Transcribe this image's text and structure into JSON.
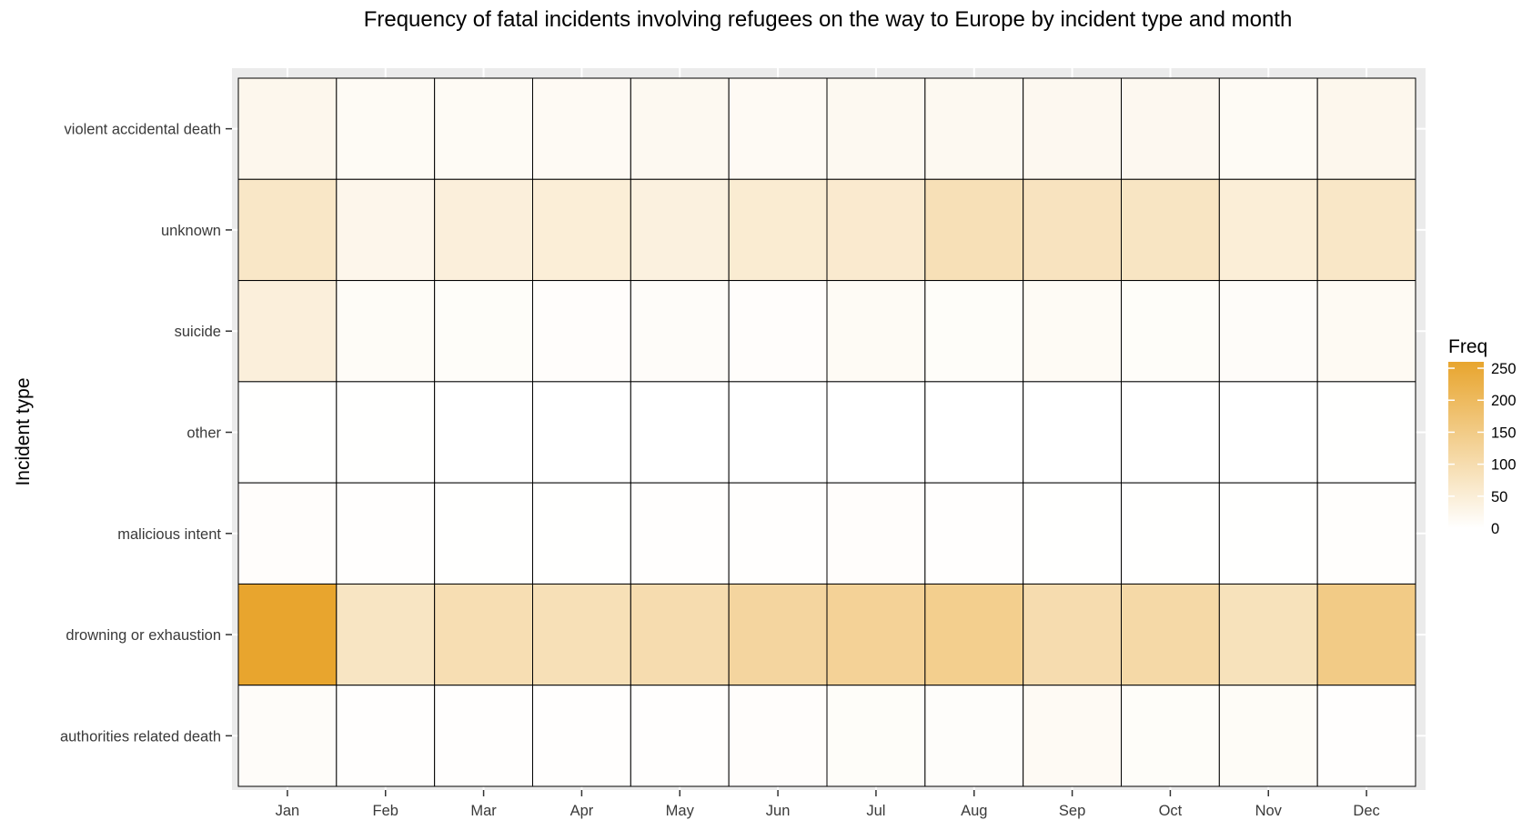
{
  "chart_data": {
    "type": "heatmap",
    "title": "Frequency of fatal incidents involving refugees on the way to Europe by incident type and month",
    "xlabel": "",
    "ylabel": "Incident type",
    "x_categories": [
      "Jan",
      "Feb",
      "Mar",
      "Apr",
      "May",
      "Jun",
      "Jul",
      "Aug",
      "Sep",
      "Oct",
      "Nov",
      "Dec"
    ],
    "y_categories": [
      "violent accidental death",
      "unknown",
      "suicide",
      "other",
      "malicious intent",
      "drowning or exhaustion",
      "authorities related death"
    ],
    "values": [
      [
        22,
        12,
        12,
        14,
        17,
        14,
        17,
        17,
        19,
        19,
        12,
        22
      ],
      [
        70,
        25,
        45,
        50,
        40,
        56,
        60,
        90,
        80,
        75,
        50,
        70
      ],
      [
        45,
        10,
        7,
        5,
        8,
        5,
        12,
        7,
        12,
        7,
        8,
        15
      ],
      [
        1,
        1,
        0,
        0,
        0,
        0,
        0,
        0,
        0,
        0,
        0,
        1
      ],
      [
        5,
        2,
        1,
        1,
        2,
        3,
        5,
        2,
        1,
        1,
        1,
        4
      ],
      [
        260,
        75,
        95,
        90,
        100,
        120,
        130,
        140,
        100,
        110,
        85,
        150
      ],
      [
        8,
        3,
        2,
        3,
        2,
        5,
        7,
        6,
        14,
        7,
        10,
        3
      ]
    ],
    "legend": {
      "title": "Freq",
      "ticks": [
        0,
        50,
        100,
        150,
        200,
        250
      ],
      "min": 0,
      "max": 260,
      "placement": "right"
    },
    "colors": {
      "low": "#FFFFFF",
      "high": "#E8A52E",
      "panel_background": "#EBEBEB",
      "cell_border": "#000000",
      "grid": "#FFFFFF"
    },
    "grid": true
  }
}
